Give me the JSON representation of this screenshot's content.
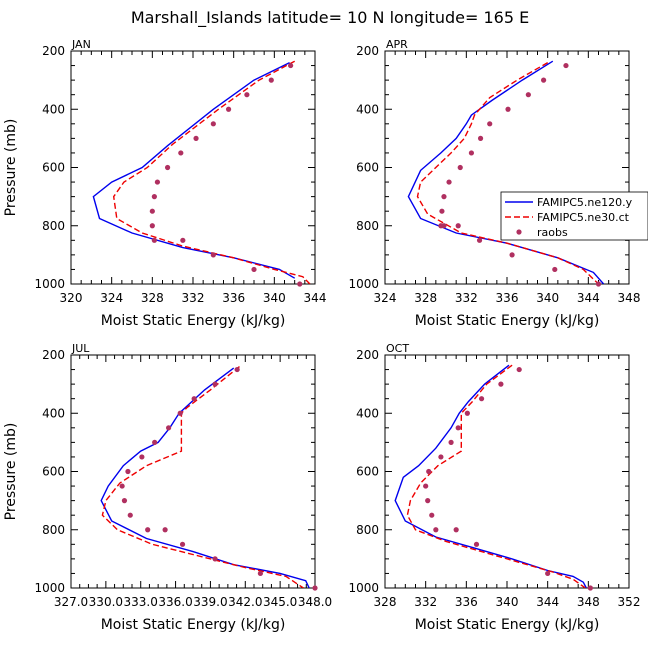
{
  "figure_title": "Marshall_Islands   latitude=  10 N longitude=  165 E",
  "legend": {
    "entries": [
      {
        "label": "FAMIPC5.ne120.y",
        "style": "solid",
        "color": "#0000ee"
      },
      {
        "label": "FAMIPC5.ne30.ct",
        "style": "dashed",
        "color": "#ee0000"
      },
      {
        "label": "raobs",
        "style": "dots",
        "color": "#b03060"
      }
    ]
  },
  "chart_data": [
    {
      "type": "line",
      "panel": "JAN",
      "xlabel": "Moist Static Energy (kJ/kg)",
      "ylabel": "Pressure (mb)",
      "xlim": [
        320,
        344
      ],
      "xticks": [
        320,
        324,
        328,
        332,
        336,
        340,
        344
      ],
      "xtick_labels": [
        "320",
        "324",
        "328",
        "332",
        "336",
        "340",
        "344"
      ],
      "ylim": [
        1000,
        200
      ],
      "yticks": [
        200,
        400,
        600,
        800,
        1000
      ],
      "ytick_labels": [
        "200",
        "400",
        "600",
        "800",
        "1000"
      ],
      "series": [
        {
          "name": "FAMIPC5.ne120.y",
          "style": "solid",
          "color": "#0000ee",
          "x": [
            341.5,
            338,
            334,
            329.5,
            327,
            324,
            322.2,
            322.8,
            326,
            331,
            336,
            340.5,
            342
          ],
          "y": [
            240,
            300,
            400,
            525,
            600,
            650,
            700,
            775,
            825,
            875,
            910,
            950,
            980
          ]
        },
        {
          "name": "FAMIPC5.ne30.ct",
          "style": "dashed",
          "color": "#ee0000",
          "x": [
            342,
            338.5,
            334.5,
            330,
            327.5,
            325.2,
            324.2,
            324.5,
            327,
            331,
            336,
            340,
            342.8,
            343.5
          ],
          "y": [
            235,
            300,
            400,
            520,
            600,
            650,
            700,
            775,
            825,
            870,
            910,
            950,
            975,
            1000
          ]
        },
        {
          "name": "raobs",
          "style": "dots",
          "color": "#b03060",
          "x": [
            341.6,
            339.7,
            337.3,
            335.5,
            334,
            332.3,
            330.8,
            329.5,
            328.5,
            328.2,
            328,
            328,
            328.2,
            331,
            334,
            338,
            342.5
          ],
          "y": [
            250,
            300,
            350,
            400,
            450,
            500,
            550,
            600,
            650,
            700,
            750,
            800,
            850,
            850,
            900,
            950,
            1000
          ]
        }
      ]
    },
    {
      "type": "line",
      "panel": "APR",
      "xlabel": "Moist Static Energy (kJ/kg)",
      "ylabel": "",
      "xlim": [
        324,
        348
      ],
      "xticks": [
        324,
        328,
        332,
        336,
        340,
        344,
        348
      ],
      "xtick_labels": [
        "324",
        "328",
        "332",
        "336",
        "340",
        "344",
        "348"
      ],
      "ylim": [
        1000,
        200
      ],
      "yticks": [
        200,
        400,
        600,
        800,
        1000
      ],
      "ytick_labels": [
        "200",
        "400",
        "600",
        "800",
        "1000"
      ],
      "series": [
        {
          "name": "FAMIPC5.ne120.y",
          "style": "solid",
          "color": "#0000ee",
          "x": [
            340.5,
            337.5,
            334.5,
            332.5,
            332,
            331,
            329.5,
            327.5,
            326.3,
            327.5,
            331,
            336,
            341,
            344.5,
            345.5
          ],
          "y": [
            235,
            300,
            370,
            420,
            450,
            500,
            550,
            610,
            700,
            775,
            825,
            860,
            910,
            960,
            1000
          ]
        },
        {
          "name": "FAMIPC5.ne30.ct",
          "style": "dashed",
          "color": "#ee0000",
          "x": [
            340,
            337,
            334.3,
            332.8,
            332.5,
            331.8,
            330.5,
            329,
            327.5,
            327.2,
            328.2,
            331.5,
            336,
            341,
            343.5,
            345
          ],
          "y": [
            240,
            300,
            360,
            420,
            450,
            500,
            550,
            600,
            650,
            700,
            760,
            825,
            860,
            910,
            950,
            1000
          ]
        },
        {
          "name": "raobs",
          "style": "dots",
          "color": "#b03060",
          "x": [
            341.8,
            339.6,
            338.1,
            336.1,
            334.3,
            333.4,
            332.5,
            331.4,
            330.3,
            329.8,
            329.6,
            329.5,
            329.8,
            331.2,
            333.3,
            336.5,
            340.7,
            345
          ],
          "y": [
            250,
            300,
            350,
            400,
            450,
            500,
            550,
            600,
            650,
            700,
            750,
            800,
            800,
            800,
            850,
            900,
            950,
            1000
          ]
        }
      ]
    },
    {
      "type": "line",
      "panel": "JUL",
      "xlabel": "Moist Static Energy (kJ/kg)",
      "ylabel": "Pressure (mb)",
      "xlim": [
        327.0,
        348.0
      ],
      "xticks": [
        327.0,
        330.0,
        333.0,
        336.0,
        339.0,
        342.0,
        345.0,
        348.0
      ],
      "xtick_labels": [
        "327.0",
        "330.0",
        "333.0",
        "336.0",
        "339.0",
        "342.0",
        "345.0",
        "348.0"
      ],
      "ylim": [
        1000,
        200
      ],
      "yticks": [
        200,
        400,
        600,
        800,
        1000
      ],
      "ytick_labels": [
        "200",
        "400",
        "600",
        "800",
        "1000"
      ],
      "series": [
        {
          "name": "FAMIPC5.ne120.y",
          "style": "solid",
          "color": "#0000ee",
          "x": [
            341,
            338.5,
            336.3,
            335.5,
            334.5,
            333,
            331.5,
            330.2,
            329.6,
            330.5,
            333.5,
            337.5,
            341,
            345,
            347.2,
            347.5
          ],
          "y": [
            245,
            320,
            400,
            450,
            500,
            530,
            580,
            650,
            700,
            770,
            830,
            875,
            920,
            950,
            975,
            1000
          ]
        },
        {
          "name": "FAMIPC5.ne30.ct",
          "style": "dashed",
          "color": "#ee0000",
          "x": [
            341.5,
            339,
            337,
            336.5,
            336.5,
            333.5,
            331.2,
            330,
            329.7,
            331,
            334,
            338,
            342,
            345.5,
            347
          ],
          "y": [
            240,
            320,
            380,
            400,
            530,
            580,
            640,
            700,
            750,
            800,
            850,
            890,
            930,
            960,
            1000
          ]
        },
        {
          "name": "raobs",
          "style": "dots",
          "color": "#b03060",
          "x": [
            341.3,
            339.4,
            337.6,
            336.4,
            335.4,
            334.2,
            333.1,
            331.9,
            331.4,
            331.6,
            332.1,
            333.6,
            335.1,
            336.6,
            339.4,
            343.3,
            348
          ],
          "y": [
            250,
            300,
            350,
            400,
            450,
            500,
            550,
            600,
            650,
            700,
            750,
            800,
            800,
            850,
            900,
            950,
            1000
          ]
        }
      ]
    },
    {
      "type": "line",
      "panel": "OCT",
      "xlabel": "Moist Static Energy (kJ/kg)",
      "ylabel": "",
      "xlim": [
        328,
        352
      ],
      "xticks": [
        328,
        332,
        336,
        340,
        344,
        348,
        352
      ],
      "xtick_labels": [
        "328",
        "332",
        "336",
        "340",
        "344",
        "348",
        "352"
      ],
      "ylim": [
        1000,
        200
      ],
      "yticks": [
        200,
        400,
        600,
        800,
        1000
      ],
      "ytick_labels": [
        "200",
        "400",
        "600",
        "800",
        "1000"
      ],
      "series": [
        {
          "name": "FAMIPC5.ne120.y",
          "style": "solid",
          "color": "#0000ee",
          "x": [
            340.2,
            337.8,
            336.2,
            335.3,
            334.5,
            333,
            331.3,
            329.8,
            329,
            330,
            333,
            336.5,
            340.5,
            344,
            346.5,
            347.5,
            347.8
          ],
          "y": [
            235,
            300,
            360,
            400,
            450,
            520,
            580,
            620,
            700,
            770,
            825,
            860,
            900,
            940,
            960,
            980,
            1000
          ]
        },
        {
          "name": "FAMIPC5.ne30.ct",
          "style": "dashed",
          "color": "#ee0000",
          "x": [
            340.5,
            338,
            336.6,
            335.5,
            335.5,
            333.2,
            331.5,
            330.5,
            330.2,
            331,
            334,
            337.5,
            341,
            344.5,
            346.5,
            347.7
          ],
          "y": [
            235,
            300,
            360,
            400,
            530,
            580,
            640,
            700,
            750,
            800,
            840,
            875,
            910,
            945,
            970,
            1000
          ]
        },
        {
          "name": "raobs",
          "style": "dots",
          "color": "#b03060",
          "x": [
            341.2,
            339.4,
            337.5,
            336.1,
            335.2,
            334.5,
            333.5,
            332.3,
            332,
            332.2,
            332.6,
            333,
            335,
            337,
            344,
            348.2
          ],
          "y": [
            250,
            300,
            350,
            400,
            450,
            500,
            550,
            600,
            650,
            700,
            750,
            800,
            800,
            850,
            950,
            1000
          ]
        }
      ]
    }
  ]
}
